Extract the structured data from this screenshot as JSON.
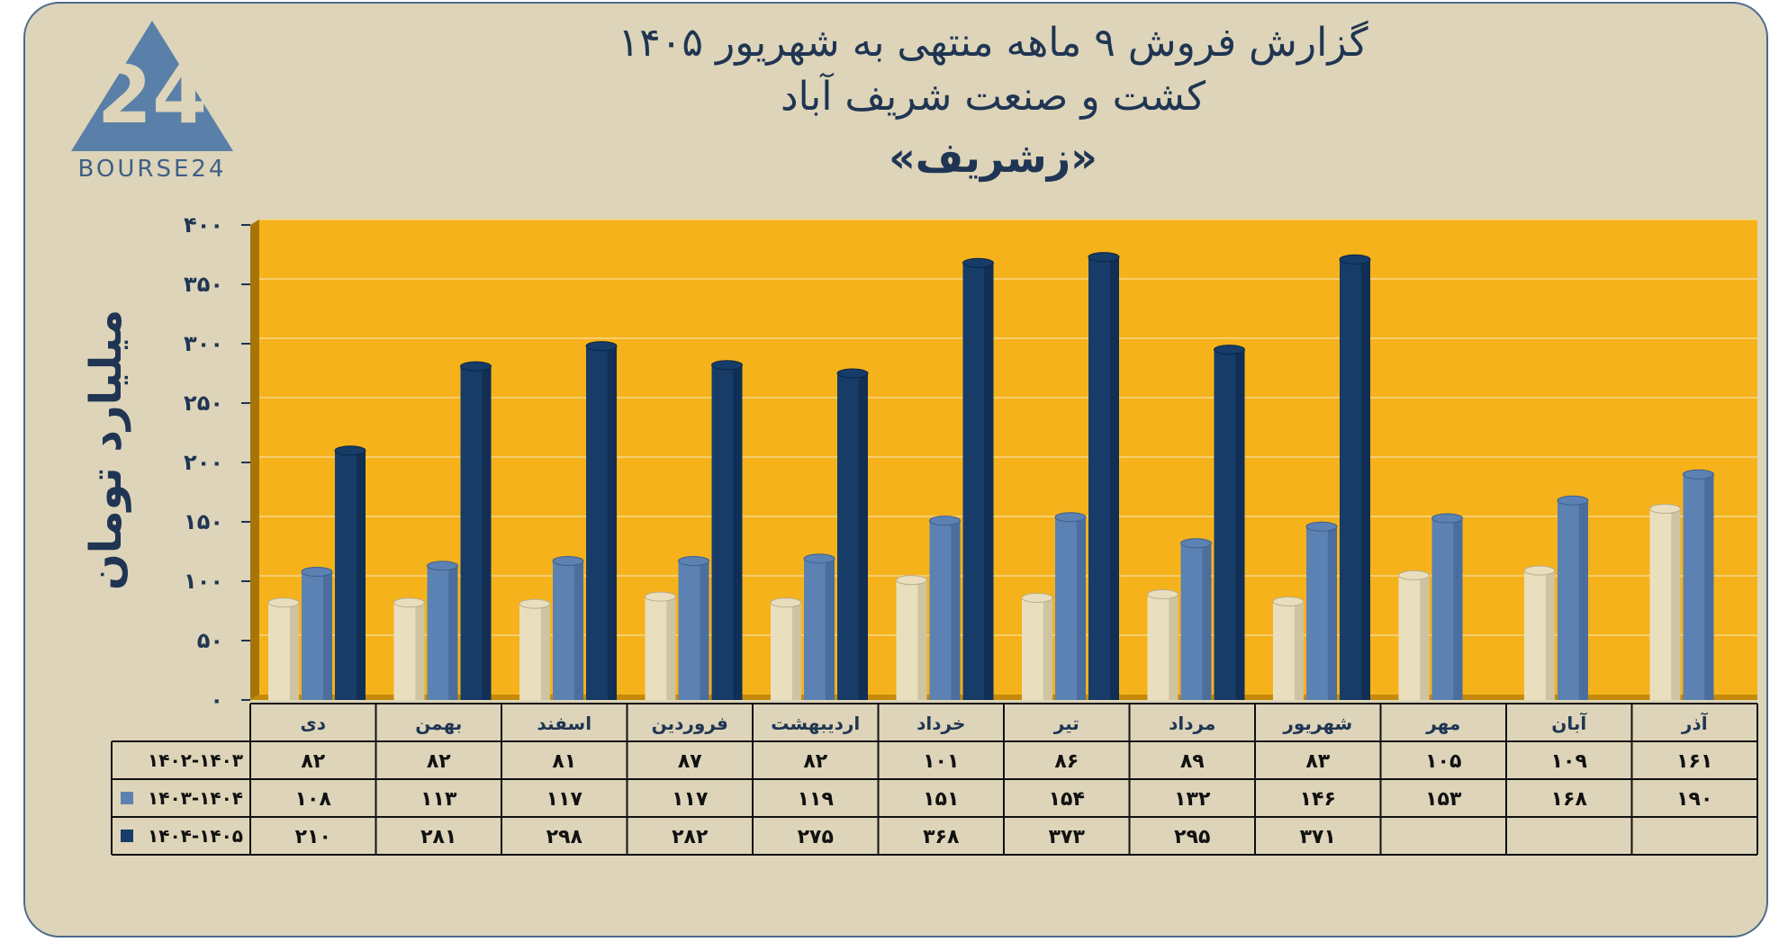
{
  "header": {
    "title_line1": "گزارش  فروش ۹ ماهه منتهی به شهریور ۱۴۰۵",
    "title_line2": "کشت و صنعت شریف آباد",
    "title_line3": "«زشریف»"
  },
  "logo": {
    "text": "BOURSE24",
    "number": "24",
    "color": "#5a7fa8"
  },
  "colors": {
    "background": "#ddd4b9",
    "plot": "#f5b21b",
    "s1": "#e9dfbf",
    "s2": "#5b82b3",
    "s3": "#173c68",
    "text": "#1f3553"
  },
  "chart_data": {
    "type": "bar",
    "ylabel": "میلیارد تومان",
    "ylim": [
      0,
      400
    ],
    "yticks": [
      "۰",
      "۵۰",
      "۱۰۰",
      "۱۵۰",
      "۲۰۰",
      "۲۵۰",
      "۳۰۰",
      "۳۵۰",
      "۴۰۰"
    ],
    "categories": [
      "دی",
      "بهمن",
      "اسفند",
      "فروردین",
      "اردیبهشت",
      "خرداد",
      "تیر",
      "مرداد",
      "شهریور",
      "مهر",
      "آبان",
      "آذر"
    ],
    "series": [
      {
        "name": "۱۴۰۲-۱۴۰۳",
        "values": [
          82,
          82,
          81,
          87,
          82,
          101,
          86,
          89,
          83,
          105,
          109,
          161
        ],
        "labels": [
          "۸۲",
          "۸۲",
          "۸۱",
          "۸۷",
          "۸۲",
          "۱۰۱",
          "۸۶",
          "۸۹",
          "۸۳",
          "۱۰۵",
          "۱۰۹",
          "۱۶۱"
        ]
      },
      {
        "name": "۱۴۰۳-۱۴۰۴",
        "values": [
          108,
          113,
          117,
          117,
          119,
          151,
          154,
          132,
          146,
          153,
          168,
          190
        ],
        "labels": [
          "۱۰۸",
          "۱۱۳",
          "۱۱۷",
          "۱۱۷",
          "۱۱۹",
          "۱۵۱",
          "۱۵۴",
          "۱۳۲",
          "۱۴۶",
          "۱۵۳",
          "۱۶۸",
          "۱۹۰"
        ]
      },
      {
        "name": "۱۴۰۴-۱۴۰۵",
        "values": [
          210,
          281,
          298,
          282,
          275,
          368,
          373,
          295,
          371,
          null,
          null,
          null
        ],
        "labels": [
          "۲۱۰",
          "۲۸۱",
          "۲۹۸",
          "۲۸۲",
          "۲۷۵",
          "۳۶۸",
          "۳۷۳",
          "۲۹۵",
          "۳۷۱",
          "",
          "",
          ""
        ]
      }
    ],
    "grid": true,
    "legend": "table-left"
  }
}
